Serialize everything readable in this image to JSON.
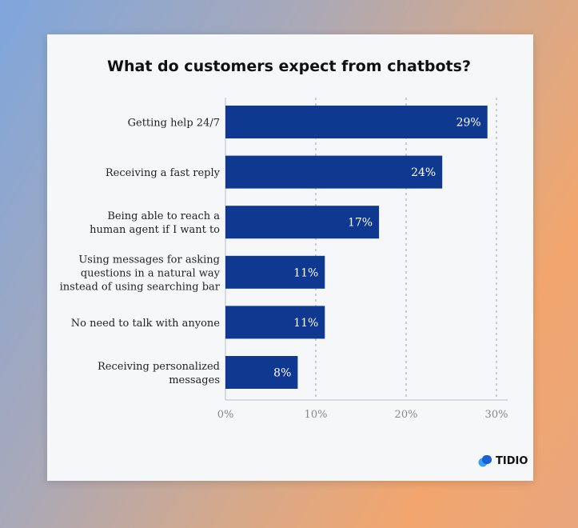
{
  "chart_data": {
    "type": "bar",
    "orientation": "horizontal",
    "title": "What do customers expect from chatbots?",
    "categories": [
      "Getting help 24/7",
      "Receiving a fast reply",
      "Being able to reach a|human agent if I want to",
      "Using messages for asking|questions in a natural way|instead of using searching bar",
      "No need to talk with anyone",
      "Receiving personalized|messages"
    ],
    "values": [
      29,
      24,
      17,
      11,
      11,
      8
    ],
    "data_labels": [
      "29%",
      "24%",
      "17%",
      "11%",
      "11%",
      "8%"
    ],
    "xlim": [
      0,
      30
    ],
    "xticks": [
      0,
      10,
      20,
      30
    ],
    "xtick_labels": [
      "0%",
      "10%",
      "20%",
      "30%"
    ],
    "grid": "vertical dashed",
    "bar_color": "#0f3891"
  },
  "brand": {
    "name": "TIDIO",
    "color": "#1b7bf0"
  }
}
